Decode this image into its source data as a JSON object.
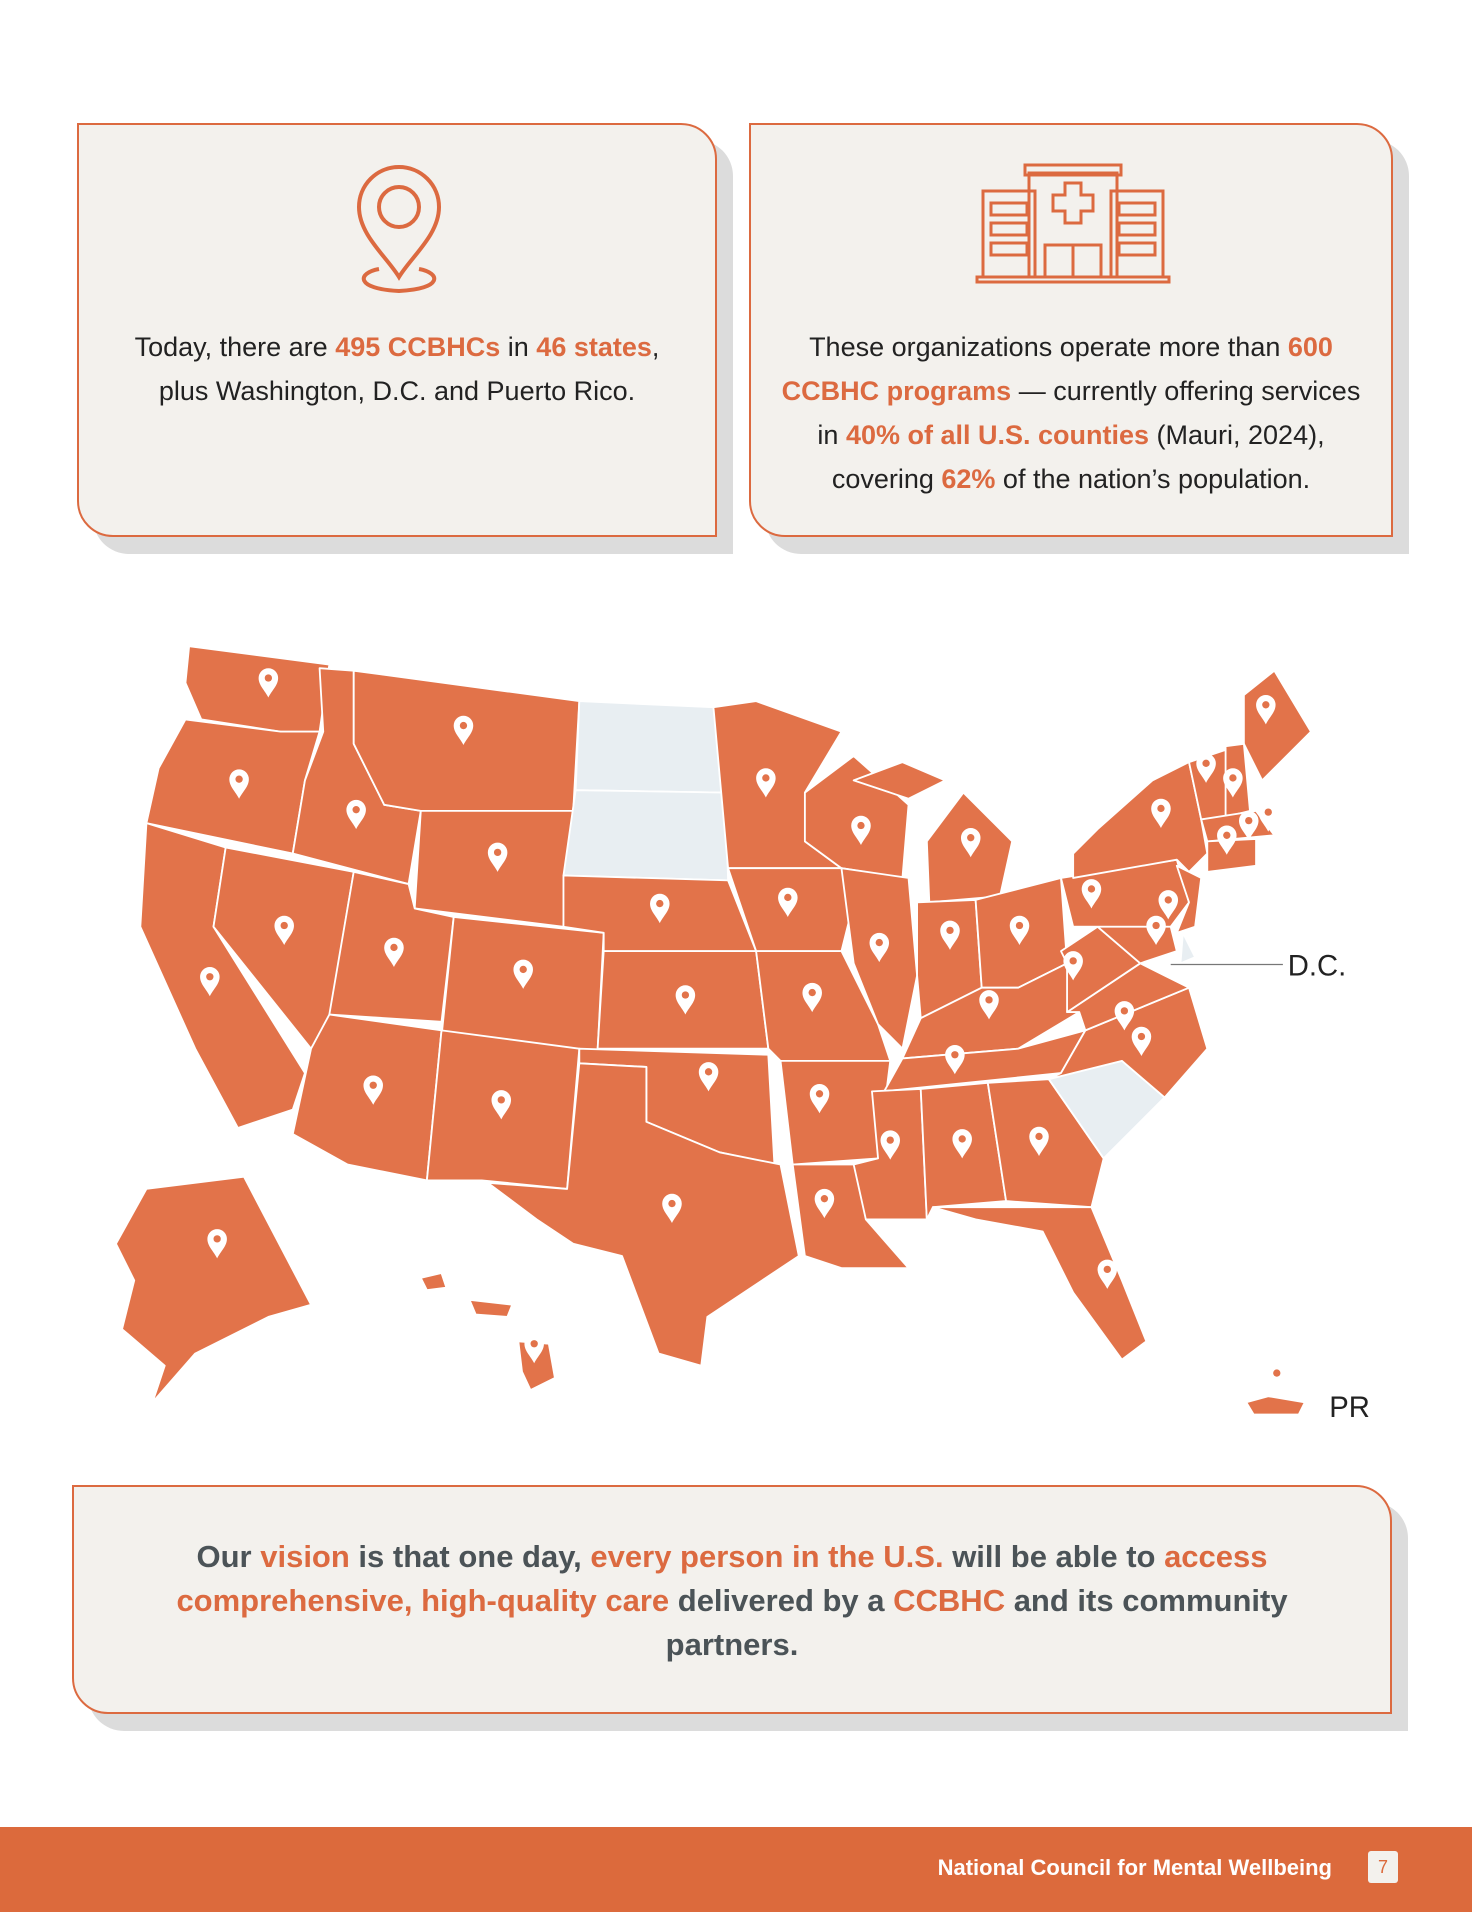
{
  "cards": [
    {
      "text": [
        "Today, there are ",
        "495 CCBHCs",
        " in ",
        "46 states",
        ", plus Washington, D.C. and Puerto Rico."
      ]
    },
    {
      "text": [
        "These organizations operate more than ",
        "600 CCBHC programs",
        " — currently offering services in ",
        "40% of all U.S. counties",
        " (Mauri, 2024), covering ",
        "62%",
        " of the nation’s population."
      ]
    }
  ],
  "map": {
    "labels": {
      "dc": "D.C.",
      "pr": "PR"
    }
  },
  "vision": {
    "text": [
      "Our ",
      "vision",
      " is that one day, ",
      "every person in the U.S.",
      " will be able to ",
      "access comprehensive, high-quality care",
      " delivered by a ",
      "CCBHC",
      " and its community partners."
    ]
  },
  "footer": {
    "organization": "National Council for Mental Wellbeing",
    "page": 7
  }
}
